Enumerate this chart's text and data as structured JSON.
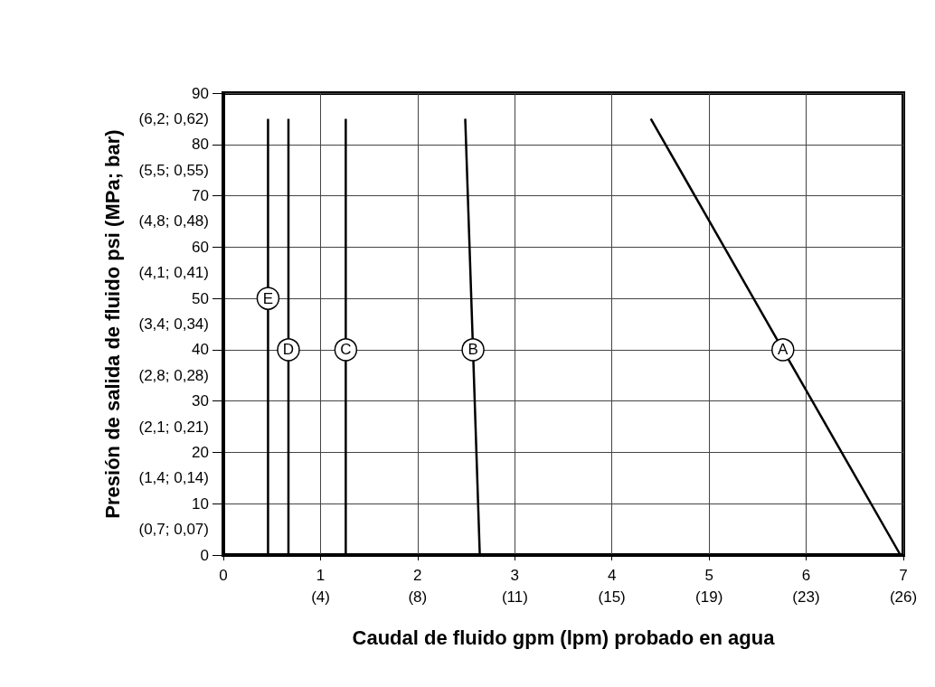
{
  "chart_data": {
    "type": "line",
    "xlabel": "Caudal de fluido gpm (lpm) probado en agua",
    "ylabel": "Presión de salida de fluido psi (MPa; bar)",
    "series": [
      {
        "color": "#000000",
        "x": [
          6.97,
          5.76,
          4.4
        ],
        "values": [
          0,
          40,
          85
        ]
      },
      {
        "color": "#000000",
        "x": [
          2.64,
          2.57,
          2.49
        ],
        "values": [
          0,
          40,
          85
        ]
      },
      {
        "color": "#000000",
        "x": [
          1.26,
          1.26,
          1.26
        ],
        "values": [
          0,
          40,
          85
        ]
      },
      {
        "color": "#000000",
        "x": [
          0.67,
          0.67,
          0.67
        ],
        "values": [
          0,
          40,
          85
        ]
      },
      {
        "color": "#000000",
        "x": [
          0.46,
          0.46,
          0.46
        ],
        "values": [
          0,
          50,
          85
        ]
      }
    ],
    "annotations": [
      {
        "text": "A",
        "x": 5.76,
        "y": 40
      },
      {
        "text": "B",
        "x": 2.57,
        "y": 40
      },
      {
        "text": "C",
        "x": 1.26,
        "y": 40
      },
      {
        "text": "D",
        "x": 0.67,
        "y": 40
      },
      {
        "text": "E",
        "x": 0.46,
        "y": 50
      }
    ],
    "xlim": [
      0,
      7
    ],
    "xticks": [
      0,
      1,
      2,
      3,
      4,
      5,
      6,
      7
    ],
    "x2lim": [
      0,
      26.5
    ],
    "x2ticks": [
      {
        "value": 3.79,
        "label": "(4)"
      },
      {
        "value": 7.57,
        "label": "(8)"
      },
      {
        "value": 11.36,
        "label": "(11)"
      },
      {
        "value": 15.14,
        "label": "(15)"
      },
      {
        "value": 18.93,
        "label": "(19)"
      },
      {
        "value": 22.71,
        "label": "(23)"
      },
      {
        "value": 26.5,
        "label": "(26)"
      }
    ],
    "ylim": [
      0,
      90
    ],
    "yticks": [
      0,
      10,
      20,
      30,
      40,
      50,
      60,
      70,
      80,
      90,
      {
        "value": 5,
        "label": "(0,7; 0,07)"
      },
      {
        "value": 15,
        "label": "(1,4; 0,14)"
      },
      {
        "value": 25,
        "label": "(2,1; 0,21)"
      },
      {
        "value": 35,
        "label": "(2,8; 0,28)"
      },
      {
        "value": 45,
        "label": "(3,4; 0,34)"
      },
      {
        "value": 55,
        "label": "(4,1; 0,41)"
      },
      {
        "value": 65,
        "label": "(4,8; 0,48)"
      },
      {
        "value": 75,
        "label": "(5,5; 0,55)"
      },
      {
        "value": 85,
        "label": "(6,2; 0,62)"
      }
    ],
    "grid": true,
    "marker": "none",
    "line_style": "solid"
  }
}
